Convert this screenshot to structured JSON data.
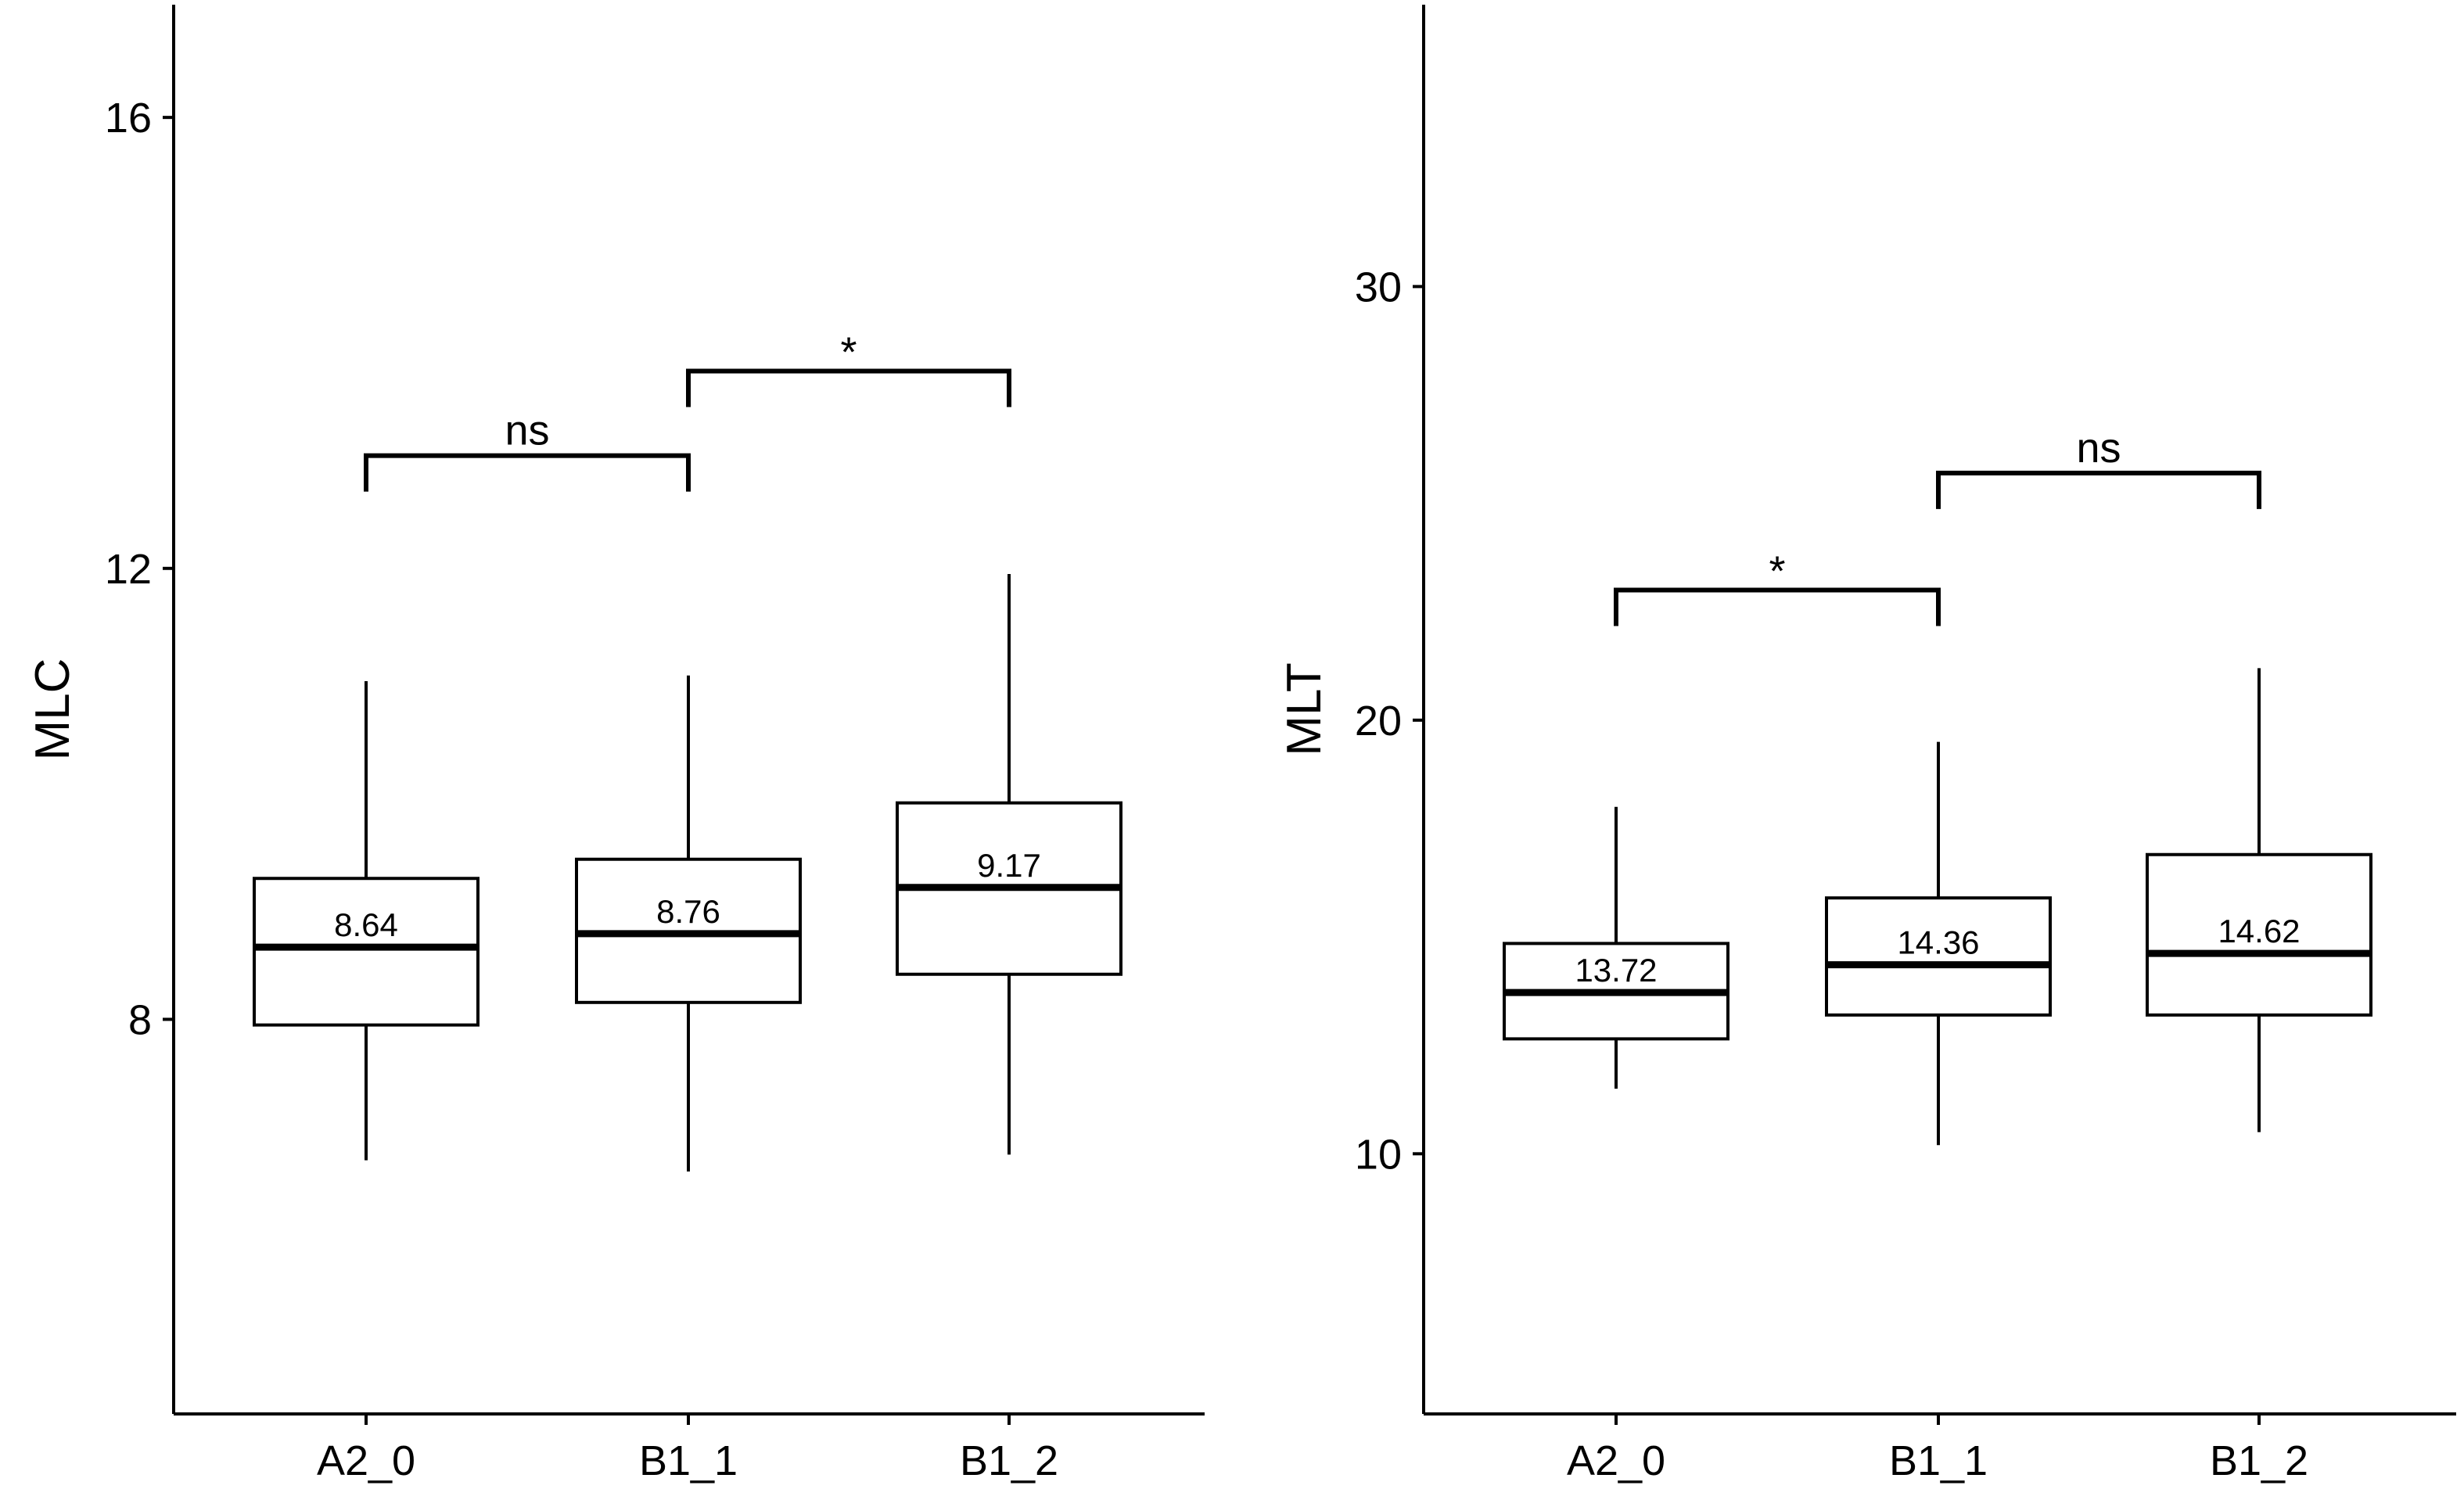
{
  "chart_data": [
    {
      "type": "boxplot",
      "title": "",
      "xlabel": "",
      "ylabel": "MLC",
      "ylim": [
        4.5,
        17
      ],
      "yticks": [
        8,
        12,
        16
      ],
      "categories": [
        "A2_0",
        "B1_1",
        "B1_2"
      ],
      "boxes": [
        {
          "category": "A2_0",
          "whisker_low": 6.75,
          "q1": 7.95,
          "median": 8.64,
          "q3": 9.25,
          "whisker_high": 11.0,
          "median_label": "8.64"
        },
        {
          "category": "B1_1",
          "whisker_low": 6.65,
          "q1": 8.15,
          "median": 8.76,
          "q3": 9.42,
          "whisker_high": 11.05,
          "median_label": "8.76"
        },
        {
          "category": "B1_2",
          "whisker_low": 6.8,
          "q1": 8.4,
          "median": 9.17,
          "q3": 9.92,
          "whisker_high": 11.95,
          "median_label": "9.17"
        }
      ],
      "significance": [
        {
          "from": "A2_0",
          "to": "B1_1",
          "y": 13.0,
          "label": "ns"
        },
        {
          "from": "B1_1",
          "to": "B1_2",
          "y": 13.75,
          "label": "*"
        }
      ],
      "grid": false,
      "legend": "none"
    },
    {
      "type": "boxplot",
      "title": "",
      "xlabel": "",
      "ylabel": "MLT",
      "ylim": [
        4,
        36.5
      ],
      "yticks": [
        10,
        20,
        30
      ],
      "categories": [
        "A2_0",
        "B1_1",
        "B1_2"
      ],
      "boxes": [
        {
          "category": "A2_0",
          "whisker_low": 11.5,
          "q1": 12.65,
          "median": 13.72,
          "q3": 14.85,
          "whisker_high": 18.0,
          "median_label": "13.72"
        },
        {
          "category": "B1_1",
          "whisker_low": 10.2,
          "q1": 13.2,
          "median": 14.36,
          "q3": 15.9,
          "whisker_high": 19.5,
          "median_label": "14.36"
        },
        {
          "category": "B1_2",
          "whisker_low": 10.5,
          "q1": 13.2,
          "median": 14.62,
          "q3": 16.9,
          "whisker_high": 21.2,
          "median_label": "14.62"
        }
      ],
      "significance": [
        {
          "from": "A2_0",
          "to": "B1_1",
          "y": 23.0,
          "label": "*"
        },
        {
          "from": "B1_1",
          "to": "B1_2",
          "y": 25.7,
          "label": "ns"
        }
      ],
      "grid": false,
      "legend": "none"
    }
  ]
}
